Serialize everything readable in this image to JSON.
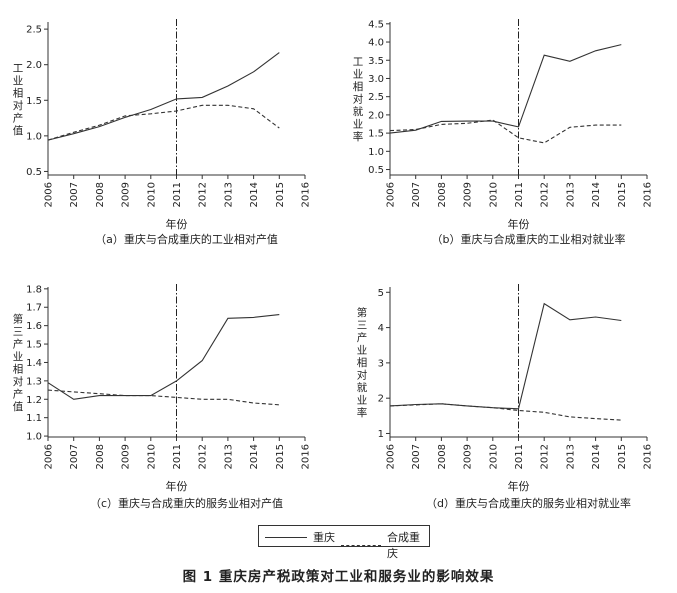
{
  "chart_data": [
    {
      "type": "line",
      "caption": "（a）重庆与合成重庆的工业相对产值",
      "ylabel": "工业相对产值",
      "xlabel": "年份",
      "x": [
        2006,
        2007,
        2008,
        2009,
        2010,
        2011,
        2012,
        2013,
        2014,
        2015
      ],
      "xticks": [
        "2006",
        "2007",
        "2008",
        "2009",
        "2010",
        "2011",
        "2012",
        "2013",
        "2014",
        "2015",
        "2016"
      ],
      "xlim": [
        2006,
        2016
      ],
      "ylim": [
        0.45,
        2.6
      ],
      "yticks": [
        0.5,
        1.0,
        1.5,
        2.0,
        2.5
      ],
      "ytick_labels": [
        "0.5",
        "1.0",
        "1.5",
        "2.0",
        "2.5"
      ],
      "vline": 2011,
      "series": [
        {
          "name": "重庆",
          "style": "solid",
          "values": [
            0.94,
            1.03,
            1.13,
            1.26,
            1.37,
            1.52,
            1.54,
            1.7,
            1.9,
            2.17
          ]
        },
        {
          "name": "合成重庆",
          "style": "dashed",
          "values": [
            0.94,
            1.05,
            1.15,
            1.28,
            1.31,
            1.35,
            1.43,
            1.43,
            1.38,
            1.11
          ]
        }
      ]
    },
    {
      "type": "line",
      "caption": "（b）重庆与合成重庆的工业相对就业率",
      "ylabel": "工业相对就业率",
      "xlabel": "年份",
      "x": [
        2006,
        2007,
        2008,
        2009,
        2010,
        2011,
        2012,
        2013,
        2014,
        2015
      ],
      "xticks": [
        "2006",
        "2007",
        "2008",
        "2009",
        "2010",
        "2011",
        "2012",
        "2013",
        "2014",
        "2015",
        "2016"
      ],
      "xlim": [
        2006,
        2016
      ],
      "ylim": [
        0.35,
        4.55
      ],
      "yticks": [
        0.5,
        1.0,
        1.5,
        2.0,
        2.5,
        3.0,
        3.5,
        4.0,
        4.5
      ],
      "ytick_labels": [
        "0.5",
        "1.0",
        "1.5",
        "2.0",
        "2.5",
        "3.0",
        "3.5",
        "4.0",
        "4.5"
      ],
      "vline": 2011,
      "series": [
        {
          "name": "重庆",
          "style": "solid",
          "values": [
            1.5,
            1.58,
            1.82,
            1.83,
            1.83,
            1.67,
            3.64,
            3.47,
            3.76,
            3.93
          ]
        },
        {
          "name": "合成重庆",
          "style": "dashed",
          "values": [
            1.57,
            1.6,
            1.74,
            1.77,
            1.86,
            1.37,
            1.23,
            1.66,
            1.72,
            1.72
          ]
        }
      ]
    },
    {
      "type": "line",
      "caption": "（c）重庆与合成重庆的服务业相对产值",
      "ylabel": "第三产业相对产值",
      "xlabel": "年份",
      "x": [
        2006,
        2007,
        2008,
        2009,
        2010,
        2011,
        2012,
        2013,
        2014,
        2015
      ],
      "xticks": [
        "2006",
        "2007",
        "2008",
        "2009",
        "2010",
        "2011",
        "2012",
        "2013",
        "2014",
        "2015",
        "2016"
      ],
      "xlim": [
        2006,
        2016
      ],
      "ylim": [
        0.995,
        1.81
      ],
      "yticks": [
        1.0,
        1.1,
        1.2,
        1.3,
        1.4,
        1.5,
        1.6,
        1.7,
        1.8
      ],
      "ytick_labels": [
        "1.0",
        "1.1",
        "1.2",
        "1.3",
        "1.4",
        "1.5",
        "1.6",
        "1.7",
        "1.8"
      ],
      "vline": 2011,
      "series": [
        {
          "name": "重庆",
          "style": "solid",
          "values": [
            1.29,
            1.2,
            1.22,
            1.22,
            1.22,
            1.3,
            1.41,
            1.64,
            1.645,
            1.66
          ]
        },
        {
          "name": "合成重庆",
          "style": "dashed",
          "values": [
            1.25,
            1.24,
            1.23,
            1.22,
            1.22,
            1.21,
            1.2,
            1.2,
            1.18,
            1.17
          ]
        }
      ]
    },
    {
      "type": "line",
      "caption": "（d）重庆与合成重庆的服务业相对就业率",
      "ylabel": "第三产业相对就业率",
      "xlabel": "年份",
      "x": [
        2006,
        2007,
        2008,
        2009,
        2010,
        2011,
        2012,
        2013,
        2014,
        2015
      ],
      "xticks": [
        "2006",
        "2007",
        "2008",
        "2009",
        "2010",
        "2011",
        "2012",
        "2013",
        "2014",
        "2015",
        "2016"
      ],
      "xlim": [
        2006,
        2016
      ],
      "ylim": [
        0.9,
        5.15
      ],
      "yticks": [
        1,
        2,
        3,
        4,
        5
      ],
      "ytick_labels": [
        "1",
        "2",
        "3",
        "4",
        "5"
      ],
      "vline": 2011,
      "series": [
        {
          "name": "重庆",
          "style": "solid",
          "values": [
            1.78,
            1.82,
            1.84,
            1.78,
            1.73,
            1.7,
            4.68,
            4.22,
            4.3,
            4.2
          ]
        },
        {
          "name": "合成重庆",
          "style": "dashed",
          "values": [
            1.78,
            1.81,
            1.84,
            1.78,
            1.73,
            1.65,
            1.6,
            1.47,
            1.42,
            1.38
          ]
        }
      ]
    }
  ],
  "legend": {
    "solid_label": "重庆",
    "dashed_label": "合成重庆"
  },
  "figure_title": "图 1    重庆房产税政策对工业和服务业的影响效果"
}
